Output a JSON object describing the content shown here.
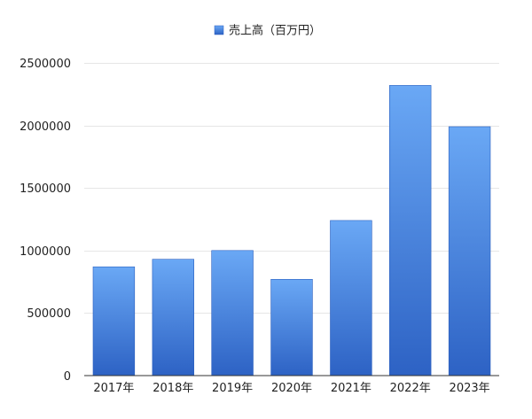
{
  "chart_data": {
    "type": "bar",
    "categories": [
      "2017年",
      "2018年",
      "2019年",
      "2020年",
      "2021年",
      "2022年",
      "2023年"
    ],
    "series": [
      {
        "name": "売上高（百万円）",
        "values": [
          870000,
          930000,
          1000000,
          770000,
          1240000,
          2320000,
          1990000
        ]
      }
    ],
    "ylim": [
      0,
      2500000
    ],
    "yticks": [
      0,
      500000,
      1000000,
      1500000,
      2000000,
      2500000
    ],
    "ytick_labels": [
      "0",
      "500000",
      "1000000",
      "1500000",
      "2000000",
      "2500000"
    ],
    "grid": true,
    "legend_position": "top",
    "colors": {
      "bar_top": "#6aa8f5",
      "bar_bottom": "#2d62c4",
      "bar_stroke": "#2b5fbf",
      "grid": "#e6e6e6",
      "axis": "#333333"
    }
  }
}
